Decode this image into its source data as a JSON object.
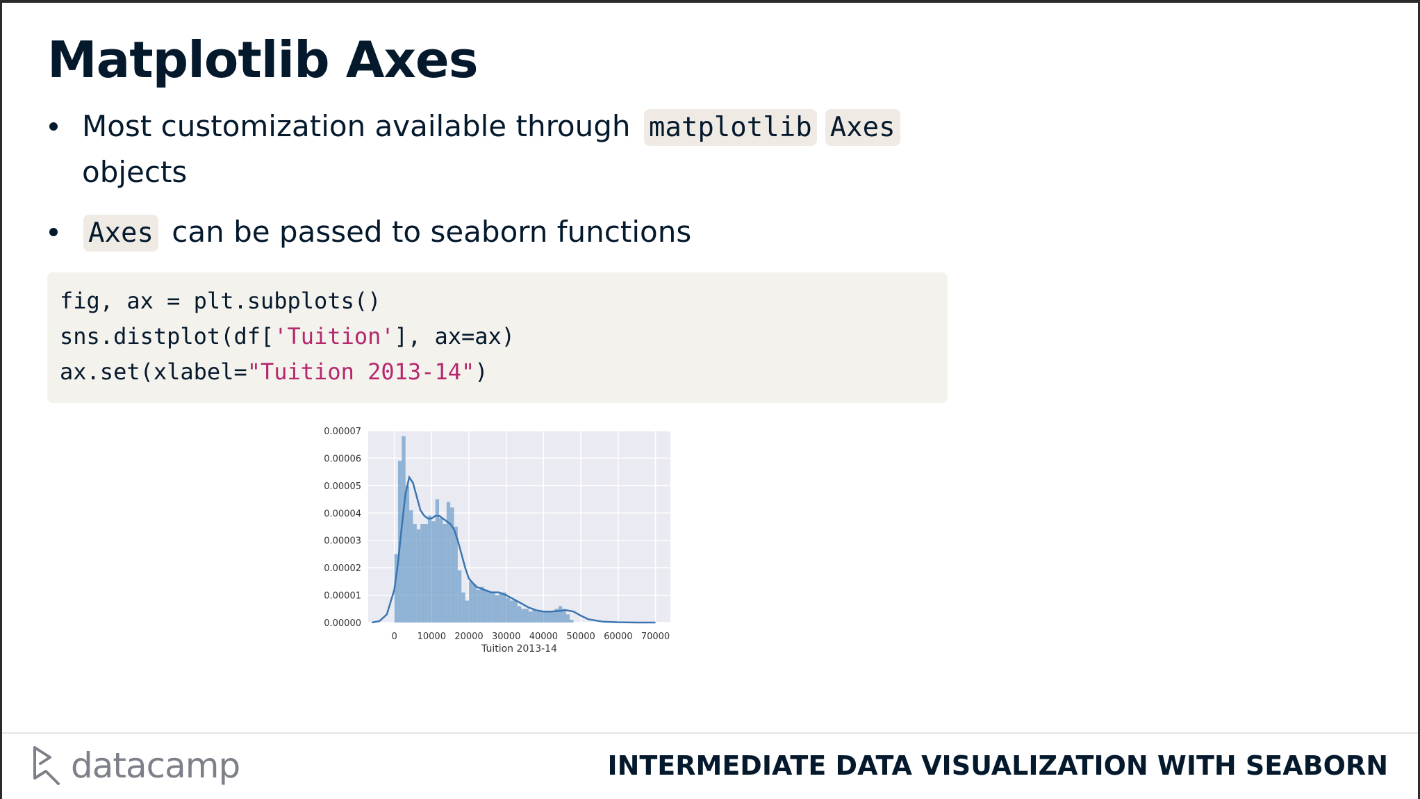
{
  "slide": {
    "title": "Matplotlib Axes",
    "bullets": [
      {
        "text_before": "Most customization available through",
        "code1": "matplotlib",
        "code2": "Axes",
        "text_after": "objects"
      },
      {
        "code": "Axes",
        "text_after": "can be passed to seaborn functions"
      }
    ],
    "code": {
      "line1": "fig, ax = plt.subplots()",
      "line2_a": "sns.distplot(df[",
      "line2_str": "'Tuition'",
      "line2_b": "], ax=ax)",
      "line3_a": "ax.set(xlabel=",
      "line3_str": "\"Tuition 2013-14\"",
      "line3_b": ")"
    }
  },
  "chart_data": {
    "type": "bar",
    "subtype": "histogram with KDE line",
    "xlabel": "Tuition 2013-14",
    "ylabel": "",
    "xlim": [
      -7000,
      74000
    ],
    "ylim": [
      0,
      7e-05
    ],
    "xticks": [
      0,
      10000,
      20000,
      30000,
      40000,
      50000,
      60000,
      70000
    ],
    "yticks": [
      0.0,
      1e-05,
      2e-05,
      3e-05,
      4e-05,
      5e-05,
      6e-05,
      7e-05
    ],
    "ytick_labels": [
      "0.00000",
      "0.00001",
      "0.00002",
      "0.00003",
      "0.00004",
      "0.00005",
      "0.00006",
      "0.00007"
    ],
    "bin_width": 1000,
    "bin_start": 0,
    "values": [
      2.5e-05,
      5.9e-05,
      6.8e-05,
      5e-05,
      4.1e-05,
      3.6e-05,
      3.4e-05,
      3.6e-05,
      3.6e-05,
      3.9e-05,
      3.7e-05,
      4.5e-05,
      3.8e-05,
      3.6e-05,
      4.4e-05,
      4.2e-05,
      3.5e-05,
      1.9e-05,
      1.1e-05,
      8e-06,
      1.5e-05,
      1.4e-05,
      1.2e-05,
      1.3e-05,
      1.2e-05,
      1.1e-05,
      1.1e-05,
      1e-05,
      1.1e-05,
      1.1e-05,
      9e-06,
      8e-06,
      8e-06,
      6e-06,
      5e-06,
      5e-06,
      4e-06,
      5e-06,
      4e-06,
      4e-06,
      4e-06,
      4e-06,
      4e-06,
      5e-06,
      6e-06,
      5e-06,
      3e-06,
      1e-06
    ],
    "kde": {
      "x": [
        -6000,
        -4000,
        -2000,
        0,
        1000,
        2000,
        3000,
        4000,
        5000,
        6000,
        7000,
        8000,
        9000,
        10000,
        11000,
        12000,
        13000,
        14000,
        15000,
        16000,
        17000,
        18000,
        19000,
        20000,
        22000,
        24000,
        26000,
        28000,
        30000,
        32000,
        34000,
        36000,
        38000,
        40000,
        42000,
        44000,
        46000,
        48000,
        50000,
        52000,
        56000,
        60000,
        65000,
        70000
      ],
      "y": [
        0.0,
        5e-07,
        3e-06,
        1.2e-05,
        2.2e-05,
        3.5e-05,
        4.7e-05,
        5.3e-05,
        5.1e-05,
        4.6e-05,
        4.1e-05,
        3.9e-05,
        3.8e-05,
        3.8e-05,
        3.9e-05,
        3.9e-05,
        3.8e-05,
        3.7e-05,
        3.6e-05,
        3.4e-05,
        3e-05,
        2.5e-05,
        2e-05,
        1.6e-05,
        1.3e-05,
        1.2e-05,
        1.1e-05,
        1.1e-05,
        1e-05,
        8.5e-06,
        7e-06,
        5.5e-06,
        4.5e-06,
        4e-06,
        4e-06,
        4.2e-06,
        4.5e-06,
        4e-06,
        2.5e-06,
        1.2e-06,
        3e-07,
        1e-07,
        0.0,
        0.0
      ]
    },
    "bar_color": "#6e9dc9",
    "line_color": "#3b75af",
    "background_color": "#eaeaf2",
    "grid": true
  },
  "footer": {
    "brand": "datacamp",
    "course": "INTERMEDIATE DATA VISUALIZATION WITH SEABORN"
  }
}
